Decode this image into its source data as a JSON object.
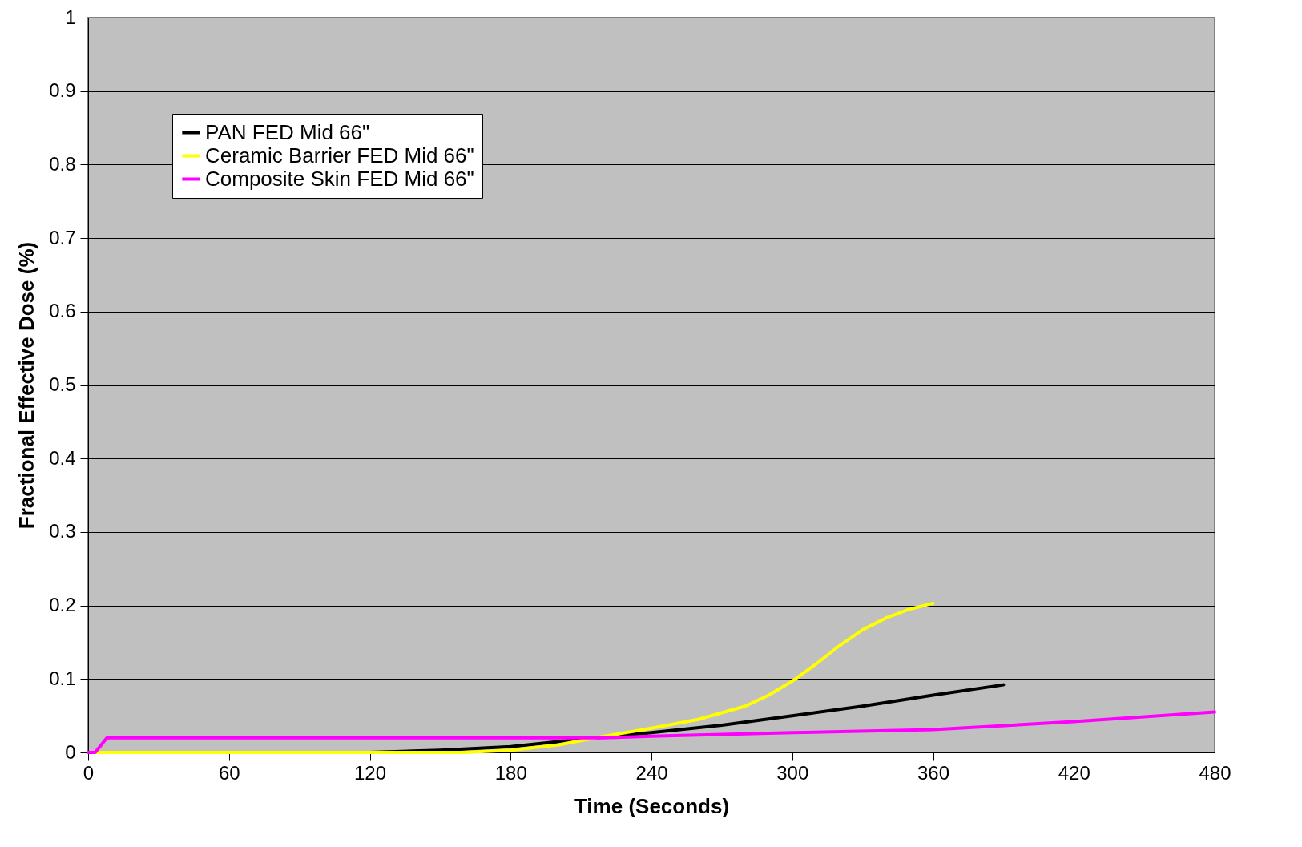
{
  "chart_data": {
    "type": "line",
    "xlabel": "Time (Seconds)",
    "ylabel": "Fractional Effective Dose (%)",
    "xlim": [
      0,
      480
    ],
    "xticks": [
      0,
      60,
      120,
      180,
      240,
      300,
      360,
      420,
      480
    ],
    "ylim": [
      0,
      1
    ],
    "yticks": [
      0,
      0.1,
      0.2,
      0.3,
      0.4,
      0.5,
      0.6,
      0.7,
      0.8,
      0.9,
      1
    ],
    "grid": "y",
    "legend": "top left",
    "marker": "none",
    "line_style": "solid",
    "series": [
      {
        "name": "PAN FED Mid 66\"",
        "color": "#000000",
        "x": [
          0,
          120,
          150,
          180,
          210,
          240,
          270,
          300,
          330,
          360,
          390
        ],
        "values": [
          0,
          0,
          0.003,
          0.008,
          0.018,
          0.027,
          0.037,
          0.05,
          0.063,
          0.078,
          0.092
        ]
      },
      {
        "name": "Ceramic Barrier FED Mid 66\"",
        "color": "#ffff00",
        "x": [
          0,
          160,
          180,
          200,
          220,
          240,
          260,
          280,
          290,
          300,
          310,
          320,
          330,
          340,
          350,
          360
        ],
        "values": [
          0,
          0,
          0.003,
          0.01,
          0.022,
          0.033,
          0.045,
          0.063,
          0.078,
          0.097,
          0.12,
          0.145,
          0.167,
          0.183,
          0.195,
          0.203
        ]
      },
      {
        "name": "Composite Skin FED Mid 66\"",
        "color": "#ff00ff",
        "x": [
          0,
          3,
          8,
          220,
          240,
          300,
          360,
          420,
          480
        ],
        "values": [
          0,
          0,
          0.02,
          0.02,
          0.022,
          0.027,
          0.031,
          0.042,
          0.055
        ]
      }
    ]
  }
}
